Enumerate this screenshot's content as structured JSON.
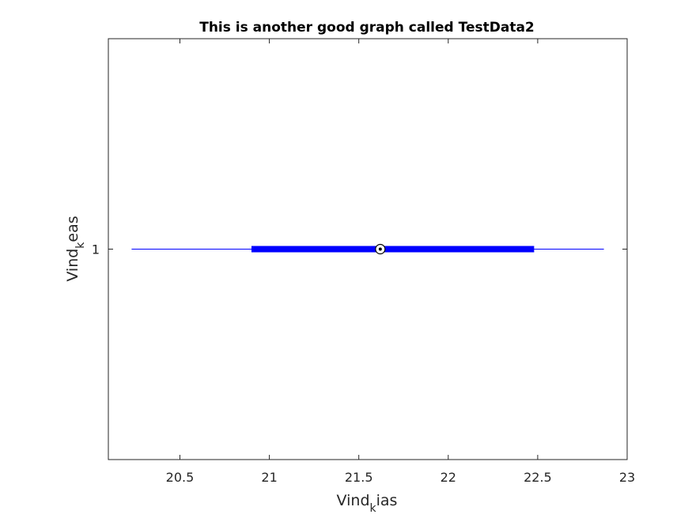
{
  "chart_data": {
    "type": "boxplot",
    "title": "This is another good graph called TestData2",
    "xlabel": {
      "base": "Vind",
      "subscript": "k",
      "rest": "ias"
    },
    "ylabel": {
      "base": "Vind",
      "subscript": "k",
      "rest": "eas"
    },
    "xlim": [
      20.1,
      23.0
    ],
    "ylim": [
      0,
      2
    ],
    "x_ticks": [
      20.5,
      21,
      21.5,
      22,
      22.5,
      23
    ],
    "x_tick_labels": [
      "20.5",
      "21",
      "21.5",
      "22",
      "22.5",
      "23"
    ],
    "y_ticks": [
      1
    ],
    "y_tick_labels": [
      "1"
    ],
    "orientation": "horizontal",
    "boxes": [
      {
        "category": "1",
        "whisker_low": 20.23,
        "q1": 20.9,
        "median": 21.62,
        "q3": 22.48,
        "whisker_high": 22.87
      }
    ],
    "color": "#0000ff",
    "grid": false
  }
}
